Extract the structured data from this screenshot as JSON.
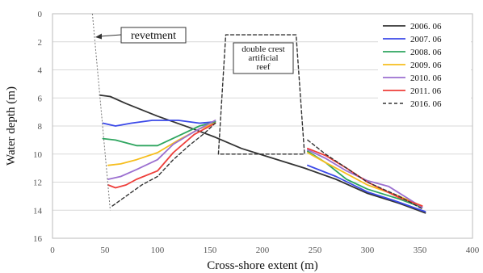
{
  "chart_data": {
    "type": "line",
    "xlabel": "Cross-shore extent (m)",
    "ylabel": "Water depth (m)",
    "xlim": [
      0,
      400
    ],
    "ylim": [
      0,
      16
    ],
    "y_inverted": true,
    "xticks": [
      "0",
      "50",
      "100",
      "150",
      "200",
      "250",
      "300",
      "350",
      "400"
    ],
    "yticks": [
      "0",
      "2",
      "4",
      "6",
      "8",
      "10",
      "12",
      "14",
      "16"
    ],
    "grid": "horizontal",
    "legend_position": "top-right",
    "series": [
      {
        "name": "2006. 06",
        "color": "#333333",
        "dash": "solid",
        "segments": [
          [
            [
              45,
              5.8
            ],
            [
              55,
              5.9
            ],
            [
              70,
              6.4
            ],
            [
              100,
              7.3
            ],
            [
              130,
              8.1
            ],
            [
              155,
              8.8
            ],
            [
              180,
              9.6
            ],
            [
              210,
              10.3
            ],
            [
              240,
              11.0
            ],
            [
              270,
              11.8
            ],
            [
              300,
              12.8
            ],
            [
              330,
              13.5
            ],
            [
              355,
              14.2
            ]
          ]
        ]
      },
      {
        "name": "2007. 06",
        "color": "#3b49e8",
        "dash": "solid",
        "segments": [
          [
            [
              48,
              7.8
            ],
            [
              60,
              8.0
            ],
            [
              75,
              7.8
            ],
            [
              95,
              7.6
            ],
            [
              120,
              7.6
            ],
            [
              140,
              7.8
            ],
            [
              155,
              7.7
            ]
          ],
          [
            [
              243,
              10.8
            ],
            [
              270,
              11.6
            ],
            [
              300,
              12.7
            ],
            [
              325,
              13.3
            ],
            [
              355,
              14.1
            ]
          ]
        ]
      },
      {
        "name": "2008. 06",
        "color": "#2ea55f",
        "dash": "solid",
        "segments": [
          [
            [
              48,
              8.9
            ],
            [
              60,
              9.0
            ],
            [
              80,
              9.4
            ],
            [
              100,
              9.4
            ],
            [
              120,
              8.7
            ],
            [
              140,
              8.0
            ],
            [
              155,
              7.7
            ]
          ],
          [
            [
              243,
              9.8
            ],
            [
              260,
              10.6
            ],
            [
              280,
              11.8
            ],
            [
              300,
              12.5
            ],
            [
              330,
              13.2
            ],
            [
              352,
              13.8
            ]
          ]
        ]
      },
      {
        "name": "2009. 06",
        "color": "#f6be1e",
        "dash": "solid",
        "segments": [
          [
            [
              53,
              10.8
            ],
            [
              65,
              10.7
            ],
            [
              80,
              10.4
            ],
            [
              100,
              9.9
            ],
            [
              120,
              9.0
            ],
            [
              140,
              8.2
            ],
            [
              155,
              7.8
            ]
          ],
          [
            [
              243,
              9.9
            ],
            [
              260,
              10.6
            ],
            [
              280,
              11.4
            ],
            [
              300,
              12.2
            ],
            [
              330,
              13.0
            ],
            [
              352,
              13.7
            ]
          ]
        ]
      },
      {
        "name": "2010. 06",
        "color": "#9b6fd0",
        "dash": "solid",
        "segments": [
          [
            [
              53,
              11.8
            ],
            [
              65,
              11.6
            ],
            [
              80,
              11.1
            ],
            [
              100,
              10.4
            ],
            [
              115,
              9.3
            ],
            [
              135,
              8.4
            ],
            [
              155,
              7.6
            ]
          ],
          [
            [
              243,
              9.7
            ],
            [
              260,
              10.3
            ],
            [
              280,
              11.2
            ],
            [
              300,
              11.9
            ],
            [
              320,
              12.3
            ],
            [
              335,
              13.0
            ],
            [
              352,
              13.8
            ]
          ]
        ]
      },
      {
        "name": "2011. 06",
        "color": "#ee3e3a",
        "dash": "solid",
        "segments": [
          [
            [
              53,
              12.2
            ],
            [
              60,
              12.4
            ],
            [
              70,
              12.2
            ],
            [
              80,
              11.8
            ],
            [
              100,
              11.2
            ],
            [
              115,
              9.9
            ],
            [
              135,
              8.6
            ],
            [
              155,
              7.8
            ]
          ],
          [
            [
              243,
              9.6
            ],
            [
              260,
              10.1
            ],
            [
              280,
              11.0
            ],
            [
              300,
              12.0
            ],
            [
              330,
              13.1
            ],
            [
              352,
              13.7
            ]
          ]
        ]
      },
      {
        "name": "2016. 06",
        "color": "#333333",
        "dash": "dashed",
        "segments": [
          [
            [
              57,
              13.7
            ],
            [
              70,
              13.0
            ],
            [
              85,
              12.2
            ],
            [
              100,
              11.6
            ],
            [
              115,
              10.4
            ],
            [
              130,
              9.4
            ],
            [
              145,
              8.5
            ],
            [
              155,
              7.8
            ]
          ],
          [
            [
              158,
              10.0
            ],
            [
              165,
              1.5
            ],
            [
              232,
              1.5
            ],
            [
              240,
              10.0
            ],
            [
              158,
              10.0
            ]
          ],
          [
            [
              243,
              9.0
            ],
            [
              260,
              10.0
            ],
            [
              280,
              11.0
            ],
            [
              300,
              12.0
            ],
            [
              330,
              13.0
            ],
            [
              352,
              13.9
            ]
          ]
        ]
      }
    ],
    "annotations": {
      "revetment": {
        "label": "revetment",
        "line": [
          [
            38,
            0
          ],
          [
            55,
            14
          ]
        ]
      },
      "reef": {
        "lines": [
          "double crest",
          "artificial",
          "reef"
        ]
      }
    }
  }
}
